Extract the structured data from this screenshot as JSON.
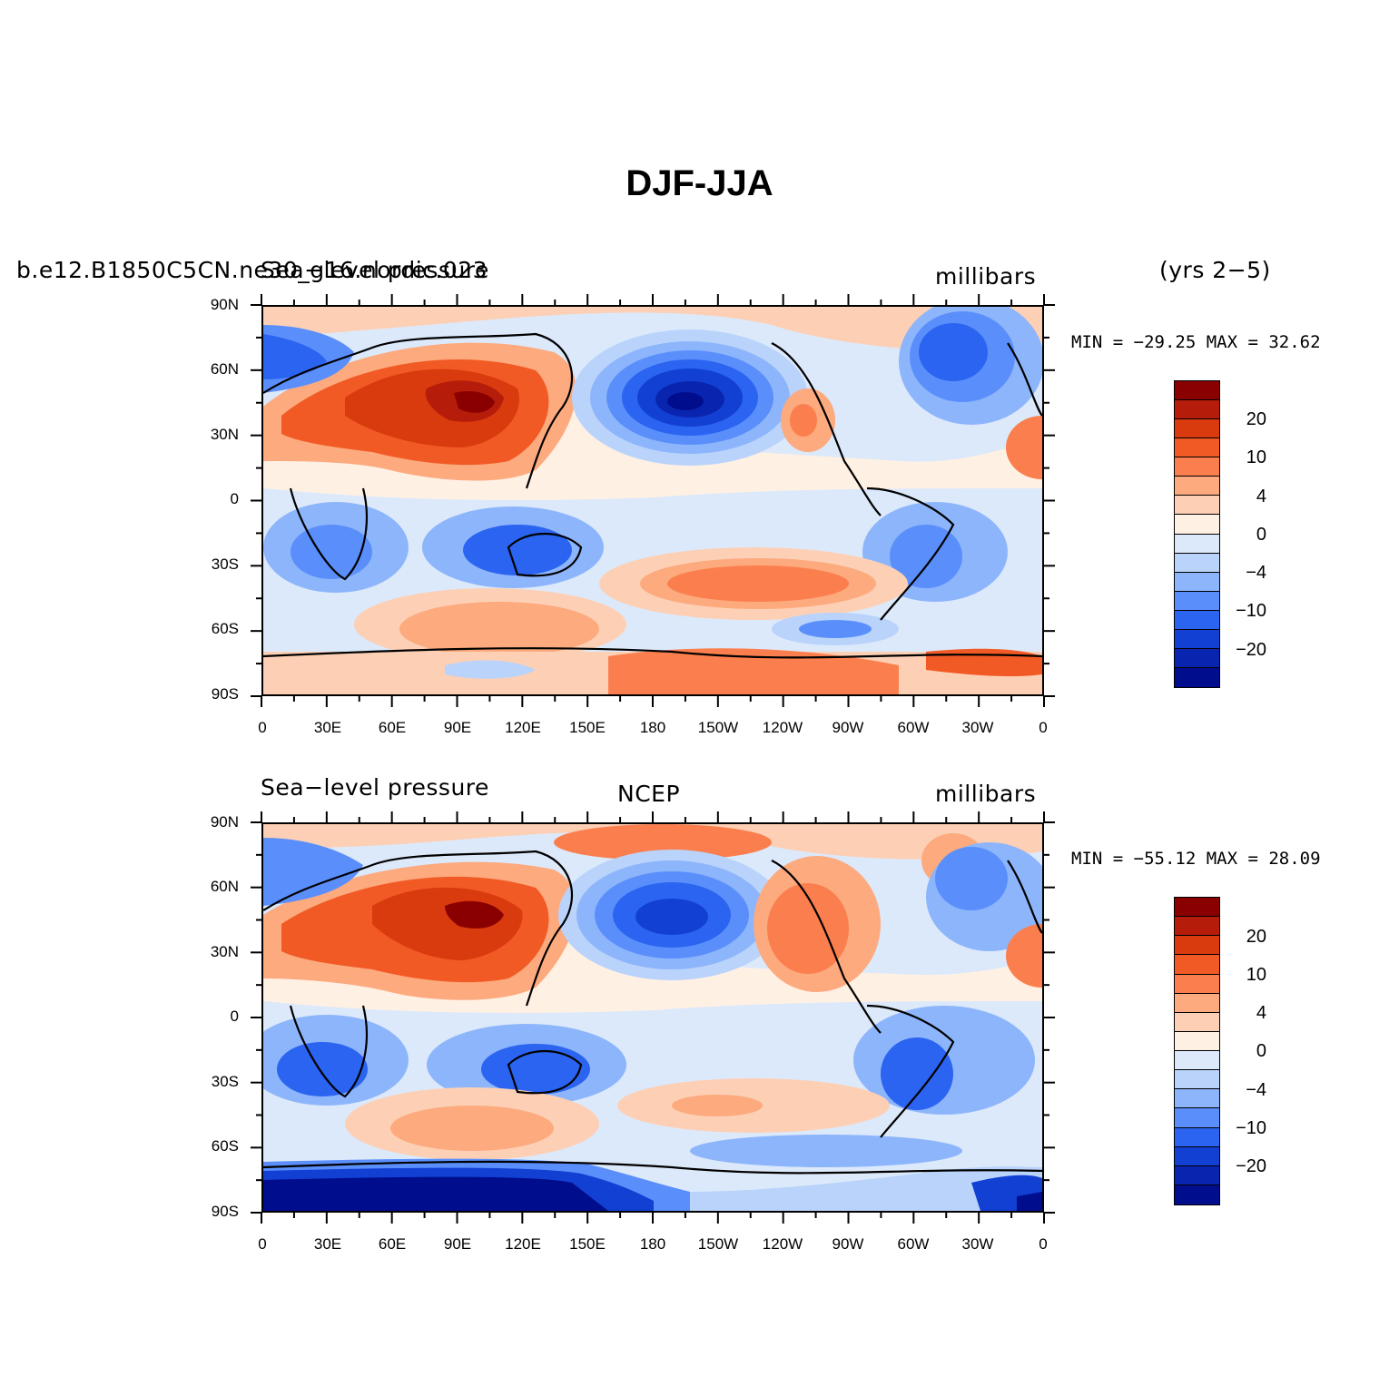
{
  "title": "DJF-JJA",
  "panels": [
    {
      "left_label": "b.e12.B1850C5CN.ne30_g16.nordic.023",
      "left_label_overlay": "Sea−level pressure",
      "center_label": "",
      "units": "millibars",
      "years": "(yrs 2−5)",
      "minmax": "MIN = −29.25 MAX =  32.62",
      "min": -29.25,
      "max": 32.62
    },
    {
      "left_label": "Sea−level pressure",
      "center_label": "NCEP",
      "units": "millibars",
      "minmax": "MIN = −55.12 MAX =  28.09",
      "min": -55.12,
      "max": 28.09
    }
  ],
  "y_ticks": [
    "90N",
    "60N",
    "30N",
    "0",
    "30S",
    "60S",
    "90S"
  ],
  "x_ticks": [
    "0",
    "30E",
    "60E",
    "90E",
    "120E",
    "150E",
    "180",
    "150W",
    "120W",
    "90W",
    "60W",
    "30W",
    "0"
  ],
  "colorbar": {
    "colors": [
      "#8a0000",
      "#b51d0a",
      "#d93a0e",
      "#f25a25",
      "#fb7f4e",
      "#fcaa7e",
      "#fdd0b5",
      "#fff0e4",
      "#dce9fb",
      "#b9d3fb",
      "#8db5fb",
      "#5a8ffb",
      "#2a64f0",
      "#1240d2",
      "#0925b0",
      "#000e8e"
    ],
    "labels": [
      "20",
      "10",
      "4",
      "0",
      "−4",
      "−10",
      "−20"
    ]
  }
}
